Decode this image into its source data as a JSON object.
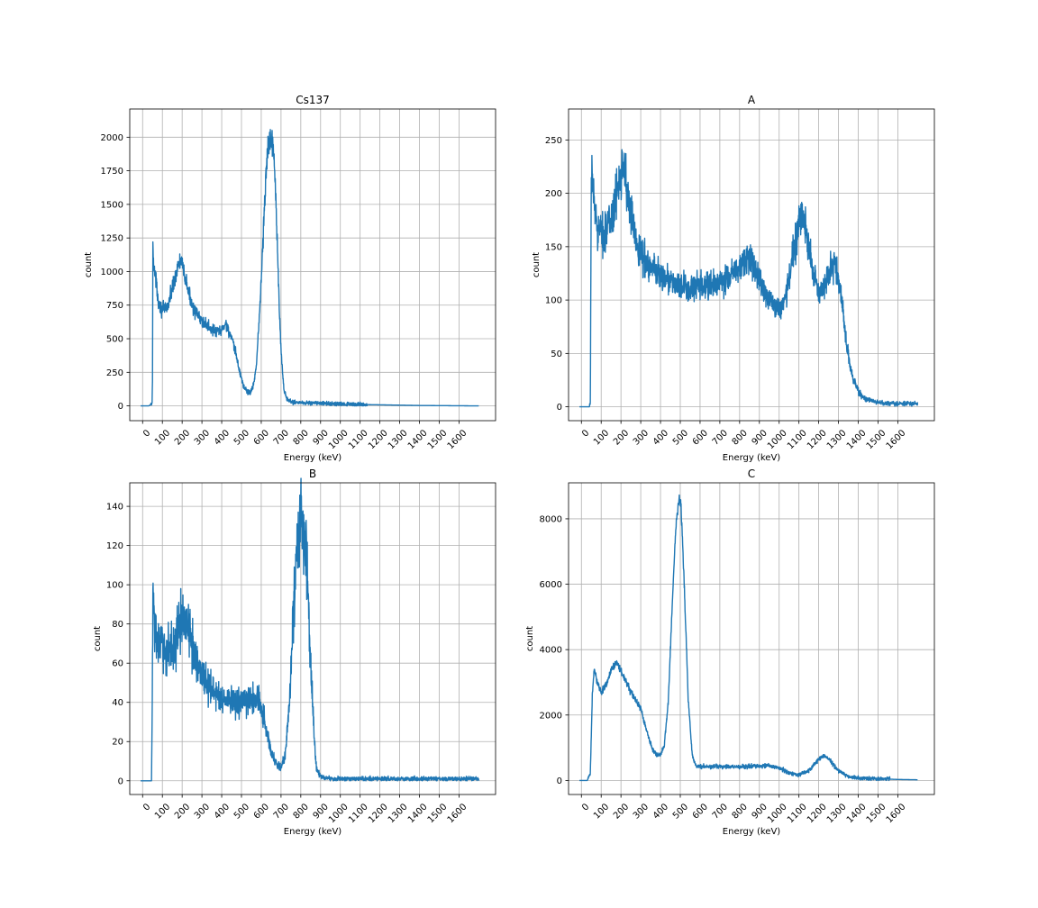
{
  "figure": {
    "background": "#ffffff",
    "line_color": "#1f77b4",
    "grid_color": "#b0b0b0"
  },
  "chart_data": [
    {
      "type": "line",
      "title": "Cs137",
      "xlabel": "Energy (keV)",
      "ylabel": "count",
      "grid": true,
      "xlim": [
        -65,
        1785
      ],
      "ylim": [
        -110,
        2210
      ],
      "xticks": [
        0,
        100,
        200,
        300,
        400,
        500,
        600,
        700,
        800,
        900,
        1000,
        1100,
        1200,
        1300,
        1400,
        1500,
        1600
      ],
      "xtick_labels": [
        "0",
        "100",
        "200",
        "300",
        "400",
        "500",
        "600",
        "700",
        "800",
        "900",
        "1000",
        "1100",
        "1200",
        "1300",
        "1400",
        "1500",
        "1600"
      ],
      "yticks": [
        0,
        250,
        500,
        750,
        1000,
        1250,
        1500,
        1750,
        2000
      ],
      "ytick_labels": [
        "0",
        "250",
        "500",
        "750",
        "1000",
        "1250",
        "1500",
        "1750",
        "2000"
      ],
      "series": [
        {
          "color": "#1f77b4",
          "noise": 0.05,
          "x": [
            -10,
            30,
            48,
            50,
            52,
            55,
            60,
            70,
            80,
            95,
            110,
            130,
            150,
            170,
            190,
            200,
            215,
            240,
            270,
            300,
            340,
            370,
            400,
            420,
            430,
            440,
            450,
            470,
            490,
            510,
            530,
            545,
            560,
            575,
            590,
            605,
            620,
            635,
            650,
            660,
            670,
            680,
            690,
            700,
            715,
            730,
            750,
            800,
            900,
            1000,
            1200,
            1400,
            1700
          ],
          "y": [
            0,
            0,
            15,
            200,
            1200,
            1100,
            1000,
            900,
            780,
            720,
            720,
            750,
            880,
            1000,
            1080,
            1050,
            950,
            800,
            690,
            630,
            580,
            550,
            560,
            620,
            580,
            540,
            500,
            400,
            260,
            150,
            105,
            100,
            150,
            300,
            650,
            1100,
            1600,
            1950,
            2000,
            1950,
            1700,
            1300,
            800,
            400,
            120,
            50,
            30,
            25,
            20,
            12,
            8,
            3,
            0
          ]
        }
      ]
    },
    {
      "type": "line",
      "title": "A",
      "xlabel": "Energy (keV)",
      "ylabel": "count",
      "grid": true,
      "xlim": [
        -65,
        1785
      ],
      "ylim": [
        -13,
        279
      ],
      "xticks": [
        0,
        100,
        200,
        300,
        400,
        500,
        600,
        700,
        800,
        900,
        1000,
        1100,
        1200,
        1300,
        1400,
        1500,
        1600
      ],
      "xtick_labels": [
        "0",
        "100",
        "200",
        "300",
        "400",
        "500",
        "600",
        "700",
        "800",
        "900",
        "1000",
        "1100",
        "1200",
        "1300",
        "1400",
        "1500",
        "1600"
      ],
      "yticks": [
        0,
        50,
        100,
        150,
        200,
        250
      ],
      "ytick_labels": [
        "0",
        "50",
        "100",
        "150",
        "200",
        "250"
      ],
      "series": [
        {
          "color": "#1f77b4",
          "noise": 0.1,
          "x": [
            -10,
            40,
            45,
            50,
            55,
            60,
            65,
            70,
            80,
            100,
            120,
            150,
            180,
            200,
            215,
            230,
            250,
            280,
            300,
            350,
            400,
            450,
            500,
            550,
            600,
            650,
            700,
            750,
            800,
            830,
            850,
            880,
            900,
            950,
            1000,
            1030,
            1060,
            1090,
            1110,
            1130,
            1150,
            1170,
            1200,
            1230,
            1260,
            1280,
            1300,
            1320,
            1340,
            1370,
            1400,
            1430,
            1450,
            1500,
            1600,
            1700
          ],
          "y": [
            0,
            0,
            3,
            200,
            225,
            200,
            190,
            180,
            170,
            162,
            165,
            175,
            200,
            225,
            230,
            200,
            180,
            155,
            145,
            130,
            125,
            118,
            112,
            110,
            112,
            113,
            115,
            122,
            130,
            135,
            138,
            130,
            120,
            100,
            92,
            100,
            130,
            165,
            180,
            170,
            150,
            125,
            105,
            112,
            130,
            132,
            120,
            95,
            60,
            28,
            15,
            8,
            6,
            4,
            3,
            3
          ]
        }
      ]
    },
    {
      "type": "line",
      "title": "B",
      "xlabel": "Energy (keV)",
      "ylabel": "count",
      "grid": true,
      "xlim": [
        -65,
        1785
      ],
      "ylim": [
        -7,
        152
      ],
      "xticks": [
        0,
        100,
        200,
        300,
        400,
        500,
        600,
        700,
        800,
        900,
        1000,
        1100,
        1200,
        1300,
        1400,
        1500,
        1600
      ],
      "xtick_labels": [
        "0",
        "100",
        "200",
        "300",
        "400",
        "500",
        "600",
        "700",
        "800",
        "900",
        "1000",
        "1100",
        "1200",
        "1300",
        "1400",
        "1500",
        "1600"
      ],
      "yticks": [
        0,
        20,
        40,
        60,
        80,
        100,
        120,
        140
      ],
      "ytick_labels": [
        "0",
        "20",
        "40",
        "60",
        "80",
        "100",
        "120",
        "140"
      ],
      "series": [
        {
          "color": "#1f77b4",
          "noise": 0.16,
          "x": [
            -10,
            45,
            48,
            52,
            55,
            60,
            70,
            100,
            130,
            160,
            190,
            210,
            230,
            260,
            300,
            350,
            400,
            450,
            500,
            550,
            580,
            600,
            620,
            650,
            680,
            700,
            720,
            740,
            760,
            780,
            800,
            815,
            830,
            850,
            870,
            880,
            900,
            950,
            1000,
            1200,
            1400,
            1700
          ],
          "y": [
            0,
            0,
            30,
            90,
            95,
            80,
            72,
            68,
            66,
            70,
            80,
            83,
            78,
            65,
            55,
            46,
            42,
            40,
            40,
            41,
            42,
            38,
            28,
            15,
            8,
            7,
            12,
            35,
            80,
            120,
            132,
            128,
            110,
            60,
            18,
            6,
            2,
            1,
            1,
            1,
            1,
            1
          ]
        }
      ]
    },
    {
      "type": "line",
      "title": "C",
      "xlabel": "Energy (keV)",
      "ylabel": "count",
      "grid": true,
      "xlim": [
        -65,
        1785
      ],
      "ylim": [
        -430,
        9100
      ],
      "xticks": [
        0,
        100,
        200,
        300,
        400,
        500,
        600,
        700,
        800,
        900,
        1000,
        1100,
        1200,
        1300,
        1400,
        1500,
        1600
      ],
      "xtick_labels": [
        "0",
        "100",
        "200",
        "300",
        "400",
        "500",
        "600",
        "700",
        "800",
        "900",
        "1000",
        "1100",
        "1200",
        "1300",
        "1400",
        "1500",
        "1600"
      ],
      "yticks": [
        0,
        2000,
        4000,
        6000,
        8000
      ],
      "ytick_labels": [
        "0",
        "2000",
        "4000",
        "6000",
        "8000"
      ],
      "series": [
        {
          "color": "#1f77b4",
          "noise": 0.015,
          "x": [
            -10,
            30,
            45,
            55,
            65,
            80,
            100,
            130,
            160,
            180,
            200,
            230,
            260,
            300,
            330,
            360,
            380,
            400,
            420,
            440,
            460,
            480,
            495,
            505,
            520,
            540,
            560,
            580,
            600,
            650,
            700,
            800,
            900,
            950,
            1000,
            1050,
            1100,
            1150,
            1200,
            1230,
            1260,
            1300,
            1350,
            1400,
            1500,
            1600,
            1700
          ],
          "y": [
            0,
            0,
            200,
            2600,
            3400,
            3000,
            2700,
            3000,
            3500,
            3600,
            3350,
            2950,
            2600,
            2200,
            1500,
            950,
            780,
            750,
            1100,
            2500,
            5500,
            8000,
            8600,
            8300,
            6000,
            2500,
            800,
            450,
            420,
            430,
            420,
            420,
            440,
            450,
            380,
            230,
            160,
            300,
            650,
            750,
            600,
            300,
            120,
            80,
            50,
            30,
            20
          ]
        }
      ]
    }
  ]
}
